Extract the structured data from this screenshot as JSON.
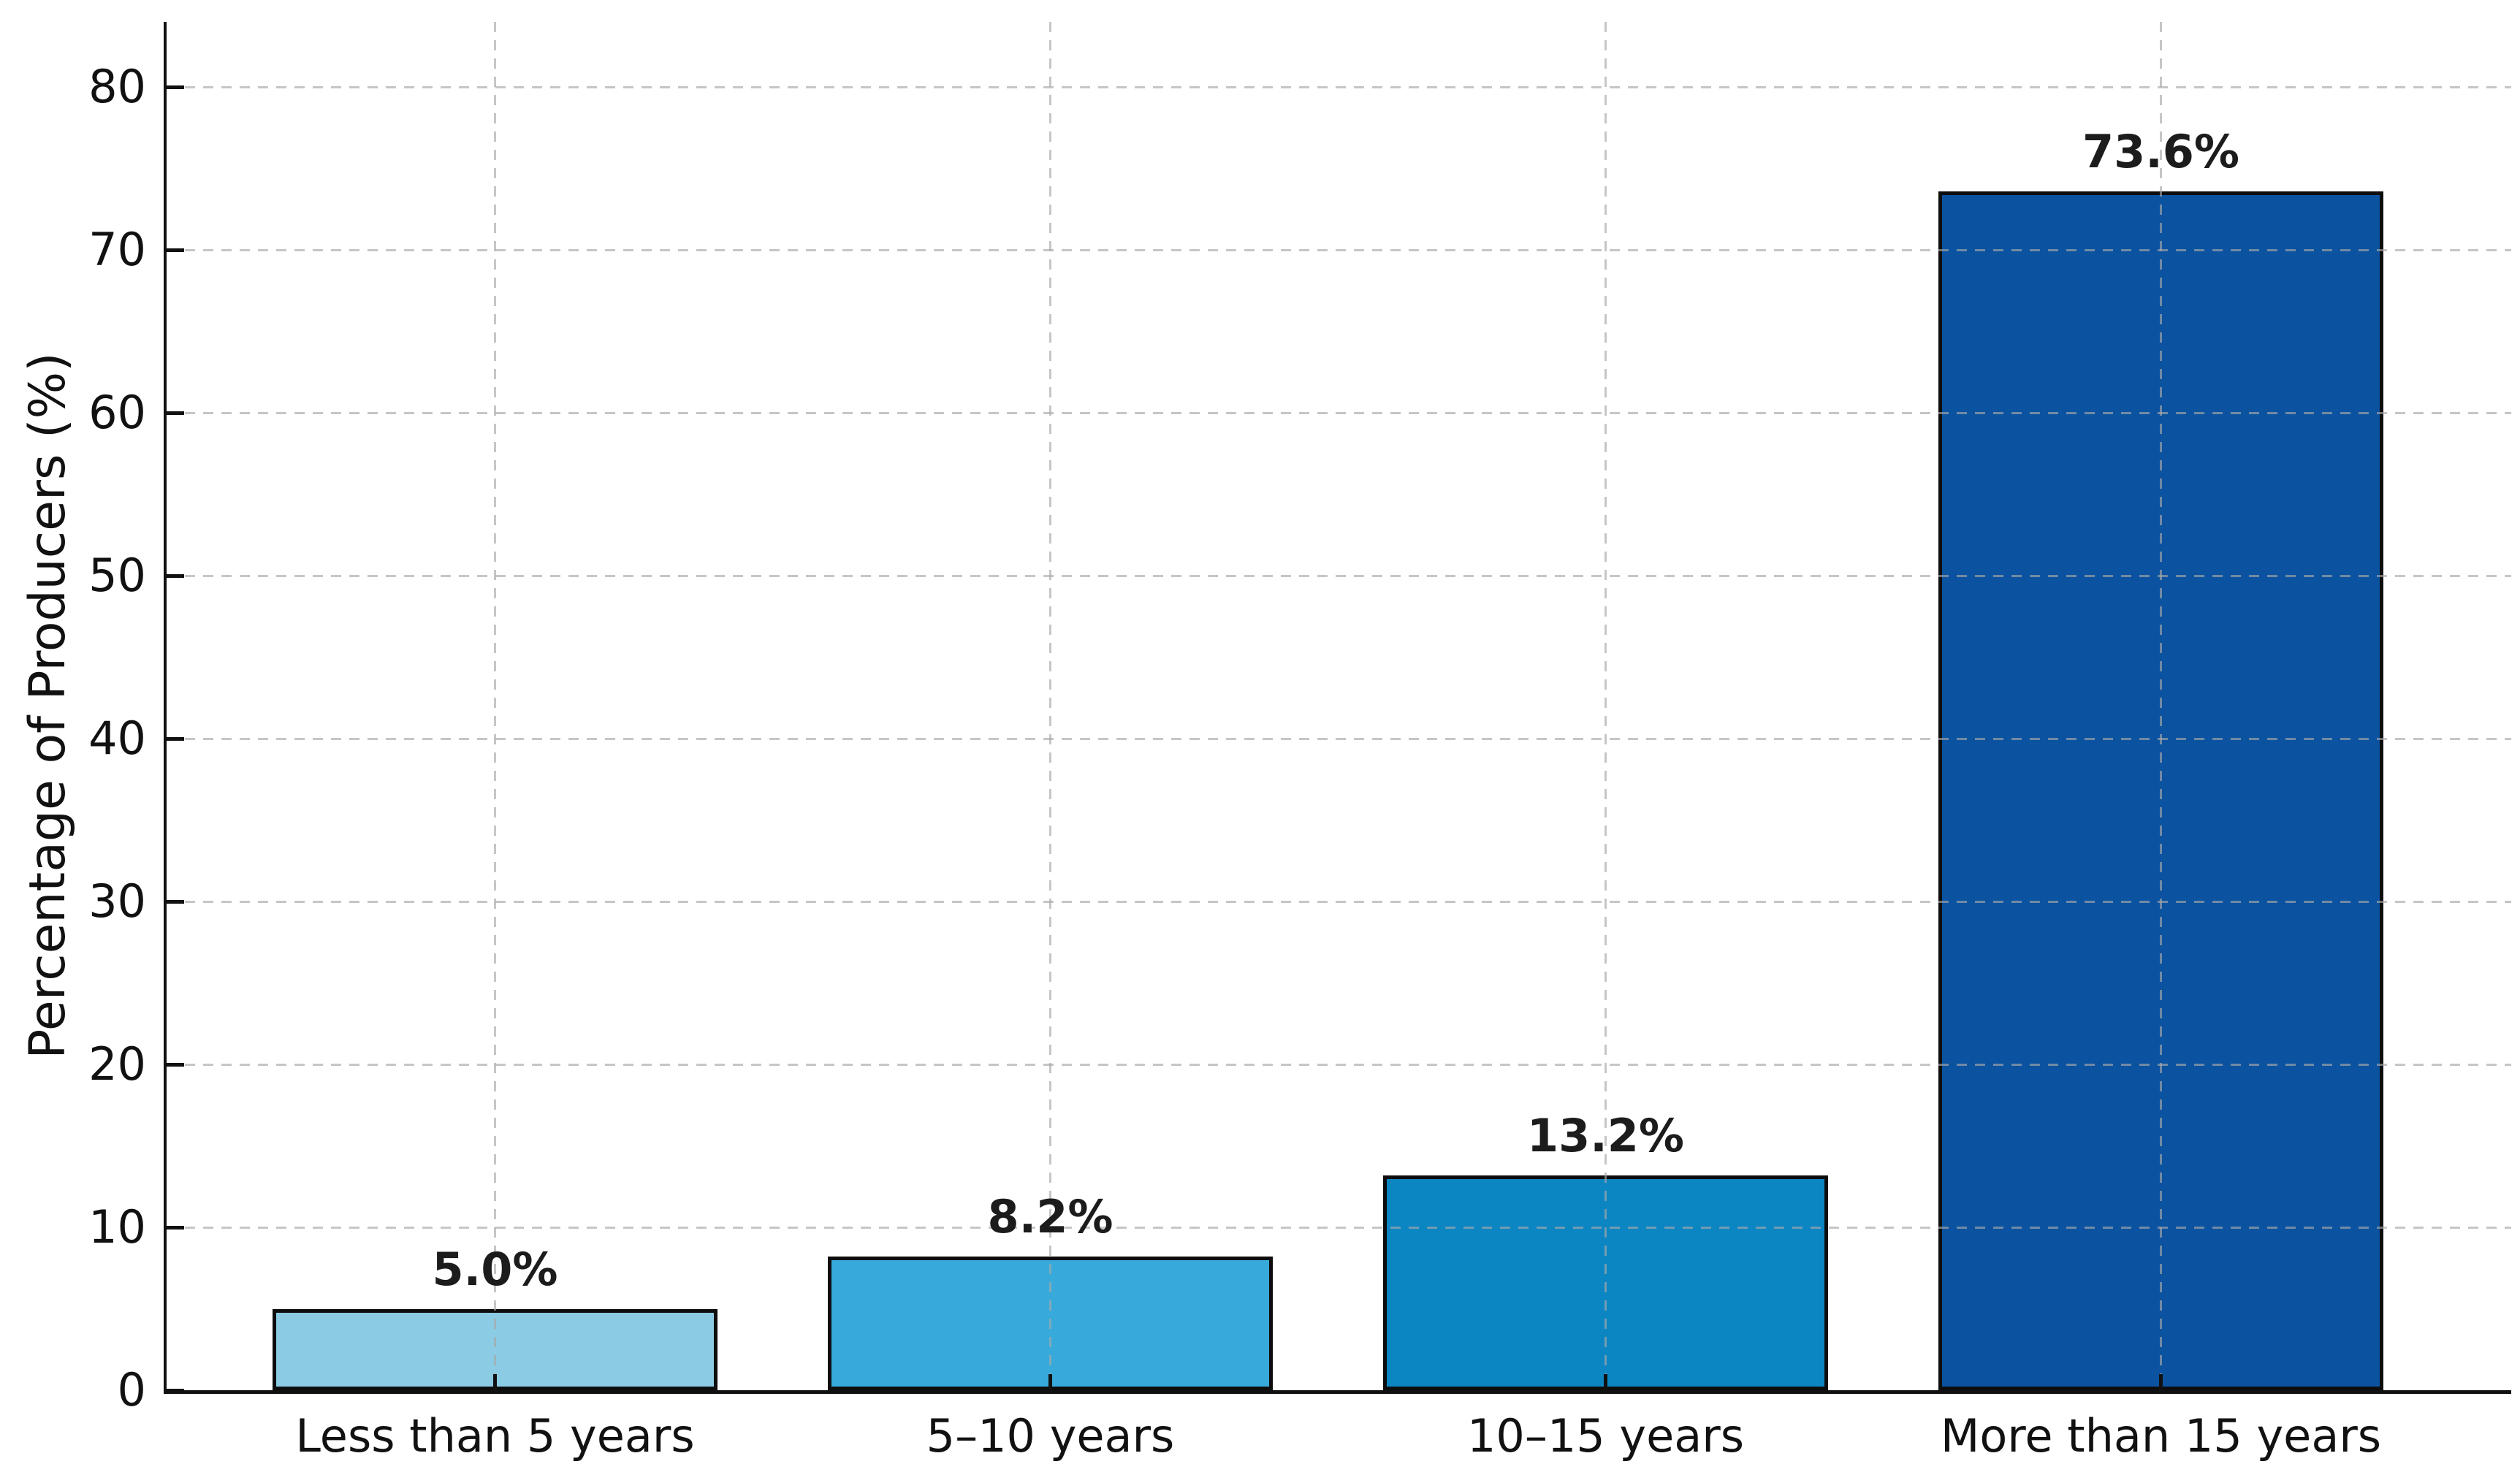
{
  "chart_data": {
    "type": "bar",
    "title": "",
    "ylabel": "Percentage of Producers (%)",
    "xlabel": "",
    "categories": [
      "Less than 5 years",
      "5–10 years",
      "10–15 years",
      "More than 15 years"
    ],
    "values": [
      5.0,
      8.2,
      13.2,
      73.6
    ],
    "value_labels": [
      "5.0%",
      "8.2%",
      "13.2%",
      "73.6%"
    ],
    "yticks": [
      0,
      10,
      20,
      30,
      40,
      50,
      60,
      70,
      80
    ],
    "ylim": [
      0,
      84
    ],
    "grid": true,
    "grid_style": "dashed",
    "grid_color": "#a8a8a8",
    "legend": "none",
    "bar_colors": [
      "#8bcbe3",
      "#37aadb",
      "#0c85c3",
      "#0b53a0"
    ],
    "bar_edge_color": "#0d0d0d",
    "text_color": "#111111"
  }
}
